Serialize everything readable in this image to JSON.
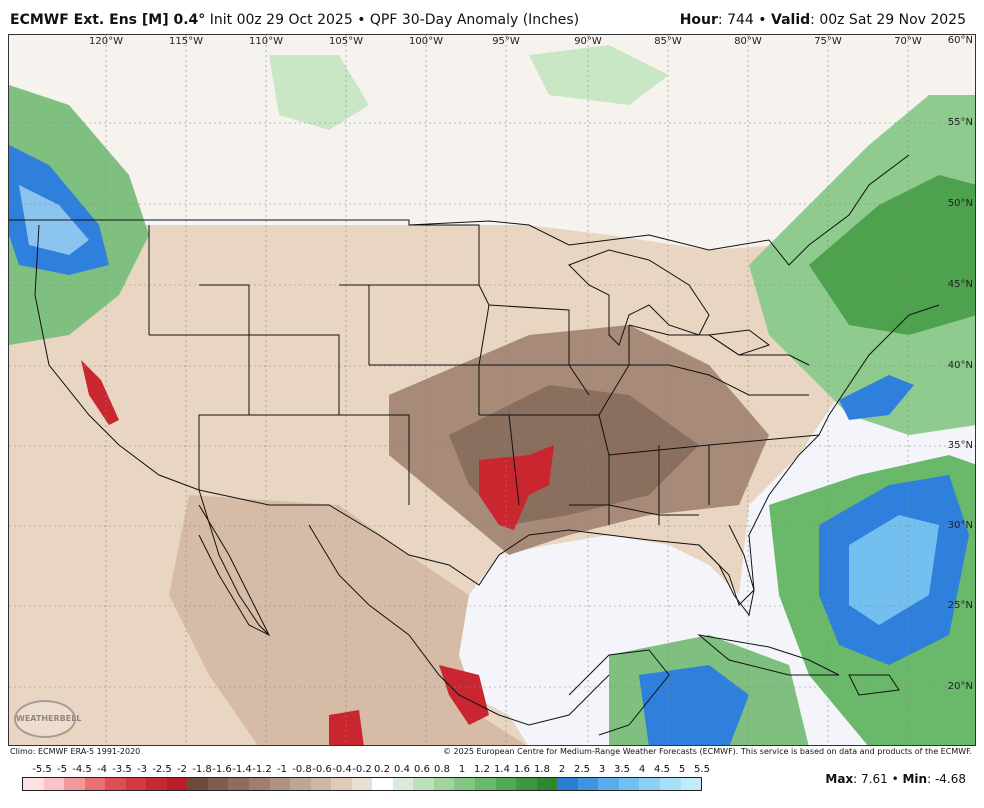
{
  "header": {
    "model": "ECMWF Ext. Ens [M] 0.4°",
    "init": "Init 00z 29 Oct 2025",
    "separator": "•",
    "product": "QPF 30-Day Anomaly (Inches)",
    "hour_label": "Hour",
    "hour_value": "744",
    "valid_label": "Valid",
    "valid_value": "00z Sat 29 Nov 2025"
  },
  "map": {
    "lon_labels": [
      "120°W",
      "115°W",
      "110°W",
      "105°W",
      "100°W",
      "95°W",
      "90°W",
      "85°W",
      "80°W",
      "75°W",
      "70°W"
    ],
    "lat_labels": [
      "60°N",
      "55°N",
      "50°N",
      "45°N",
      "40°N",
      "35°N",
      "30°N",
      "25°N",
      "20°N"
    ],
    "watermark": "WEATHERBELL"
  },
  "footer": {
    "climo": "Climo: ECMWF ERA-5 1991-2020",
    "copyright": "© 2025 European Centre for Medium-Range Weather Forecasts (ECMWF). This service is based on data and products of the ECMWF."
  },
  "colorbar": {
    "labels": [
      "-5.5",
      "-5",
      "-4.5",
      "-4",
      "-3.5",
      "-3",
      "-2.5",
      "-2",
      "-1.8",
      "-1.6",
      "-1.4",
      "-1.2",
      "-1",
      "-0.8",
      "-0.6",
      "-0.4",
      "-0.2",
      "0.2",
      "0.4",
      "0.6",
      "0.8",
      "1",
      "1.2",
      "1.4",
      "1.6",
      "1.8",
      "2",
      "2.5",
      "3",
      "3.5",
      "4",
      "4.5",
      "5",
      "5.5"
    ],
    "colors": [
      "#fde0e0",
      "#f9c3c6",
      "#f2999e",
      "#e97074",
      "#de4e55",
      "#d23a42",
      "#c52a34",
      "#b61e28",
      "#6c4a40",
      "#7d5c51",
      "#8e6e62",
      "#9e8073",
      "#ae9283",
      "#bea597",
      "#cdb8a8",
      "#dccbba",
      "#ebdfd1",
      "#ffffff",
      "#d9ecd9",
      "#bde0bd",
      "#a0d3a0",
      "#85c585",
      "#6ab86a",
      "#54a854",
      "#419741",
      "#308530",
      "#2a7fd0",
      "#3f95e0",
      "#59abe9",
      "#72bff0",
      "#8cd0f4",
      "#a6def7",
      "#c1ebfa"
    ],
    "palette": {
      "ocean": "#f4f5fa",
      "light_brown": "#e8d5c2",
      "mid_brown": "#c9ad96",
      "dark_brown": "#8a6e5e",
      "red": "#c9262f",
      "light_green": "#c9e6c5",
      "green": "#5fb05f",
      "dark_green": "#3a8a3a",
      "blue": "#2f7fdc",
      "light_blue": "#8cc4f0"
    }
  },
  "stats": {
    "max_label": "Max",
    "max_value": "7.61",
    "min_label": "Min",
    "min_value": "-4.68"
  }
}
